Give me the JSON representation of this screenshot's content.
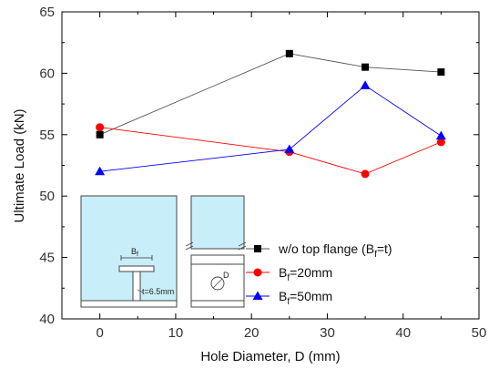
{
  "chart_data": {
    "type": "line",
    "xlabel": "Hole Diameter, D  (mm)",
    "ylabel": "Ultimate Load  (kN)",
    "xlim": [
      -5,
      50
    ],
    "ylim": [
      40,
      65
    ],
    "xticks": [
      0,
      10,
      20,
      30,
      40,
      50
    ],
    "yticks": [
      40,
      45,
      50,
      55,
      60,
      65
    ],
    "legend_placement": "bottom-right",
    "series": [
      {
        "name": "w/o top flange (B_f=t)",
        "label_main": "w/o top flange (B",
        "label_sub": "f",
        "label_tail": "=t)",
        "color": "#000000",
        "line_color": "#555555",
        "marker": "square",
        "x": [
          0,
          25,
          35,
          45
        ],
        "y": [
          55.0,
          61.6,
          60.5,
          60.1
        ]
      },
      {
        "name": "B_f=20mm",
        "label_main": "B",
        "label_sub": "f",
        "label_tail": "=20mm",
        "color": "#ff0000",
        "line_color": "#ff0000",
        "marker": "circle",
        "x": [
          0,
          25,
          35,
          45
        ],
        "y": [
          55.6,
          53.6,
          51.8,
          54.4
        ]
      },
      {
        "name": "B_f=50mm",
        "label_main": "B",
        "label_sub": "f",
        "label_tail": "=50mm",
        "color": "#0000ff",
        "line_color": "#0000ff",
        "marker": "triangle",
        "x": [
          0,
          25,
          35,
          45
        ],
        "y": [
          52.0,
          53.8,
          59.0,
          54.9
        ]
      }
    ],
    "inset_labels": {
      "flange_width": "B",
      "flange_width_sub": "f",
      "thickness": "t=6.5mm",
      "hole": "D"
    }
  }
}
